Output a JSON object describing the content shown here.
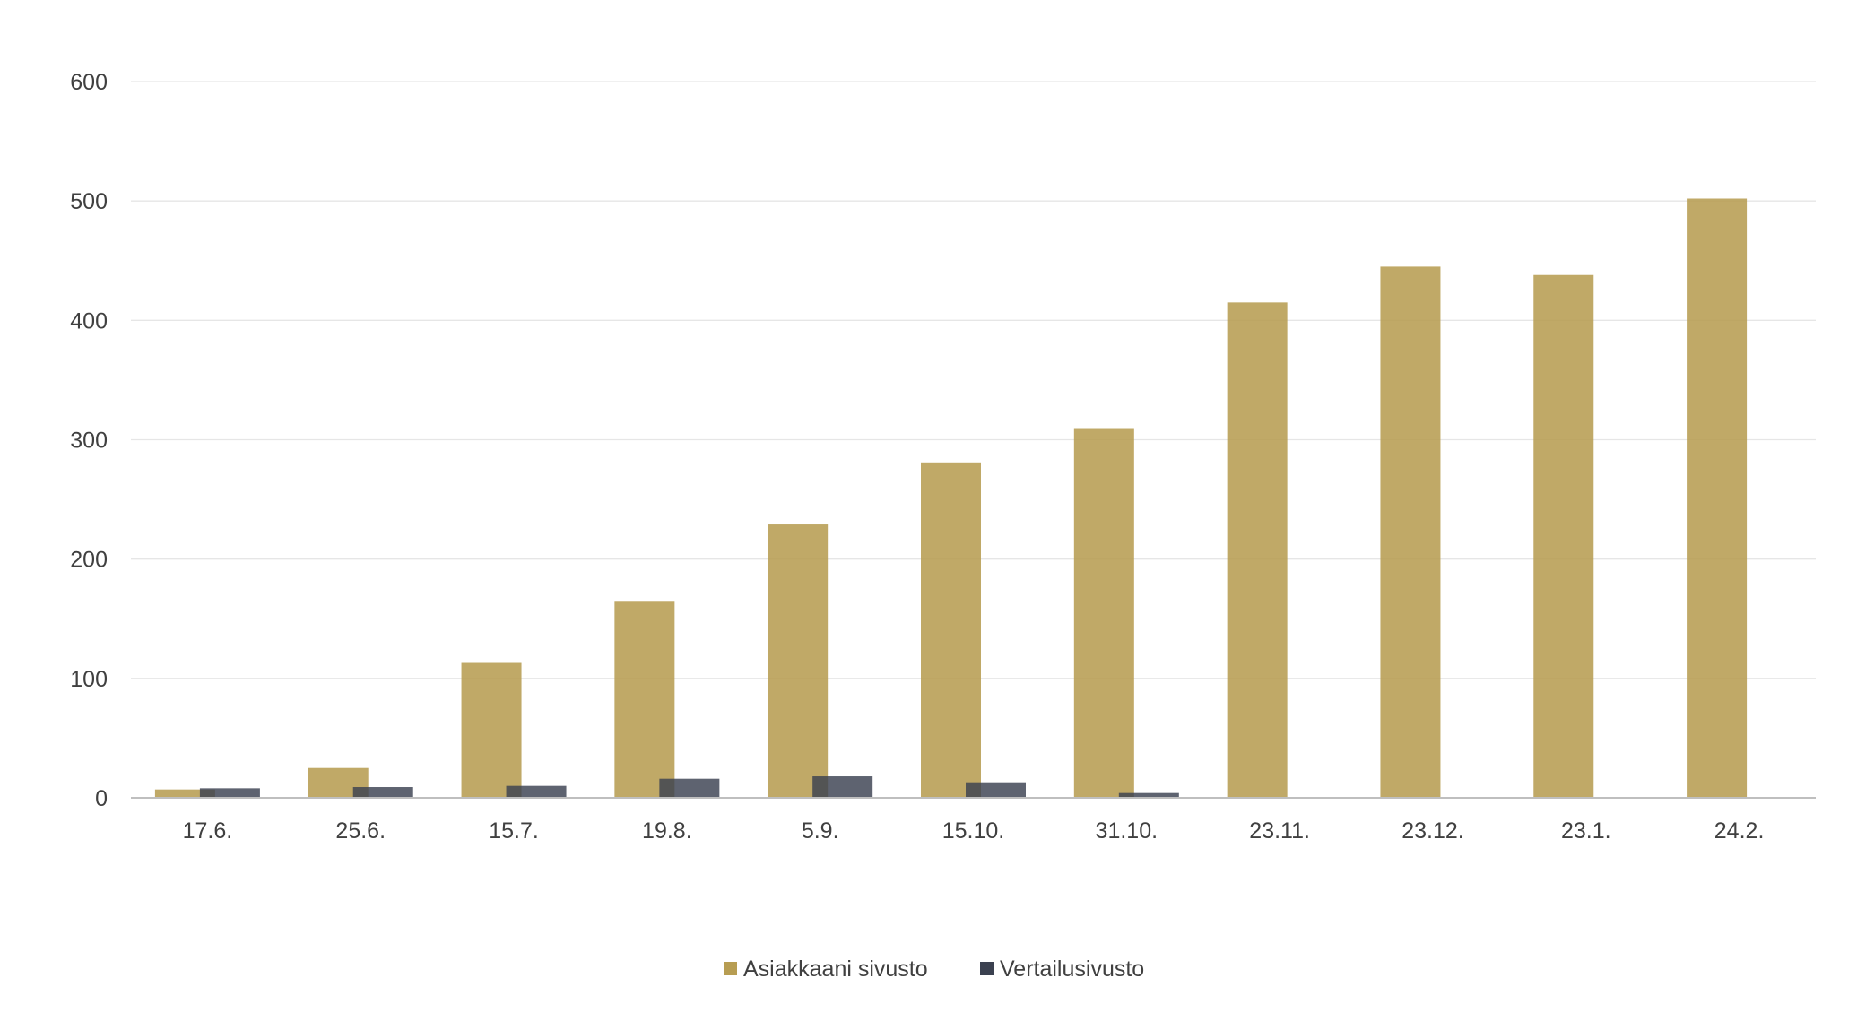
{
  "chart_data": {
    "type": "bar",
    "title": "",
    "xlabel": "",
    "ylabel": "",
    "categories": [
      "17.6.",
      "25.6.",
      "15.7.",
      "19.8.",
      "5.9.",
      "15.10.",
      "31.10.",
      "23.11.",
      "23.12.",
      "23.1.",
      "24.2."
    ],
    "series": [
      {
        "name": "Asiakkaani sivusto",
        "color": "#b79d52",
        "values": [
          7,
          25,
          113,
          165,
          229,
          281,
          309,
          415,
          445,
          438,
          502
        ]
      },
      {
        "name": "Vertailusivusto",
        "color": "#3b4150",
        "values": [
          8,
          9,
          10,
          16,
          18,
          13,
          4,
          0,
          0,
          0,
          0
        ]
      }
    ],
    "ylim": [
      0,
      600
    ],
    "yticks": [
      "0",
      "100",
      "200",
      "300",
      "400",
      "500",
      "600"
    ],
    "grid": true,
    "legend_position": "bottom"
  }
}
